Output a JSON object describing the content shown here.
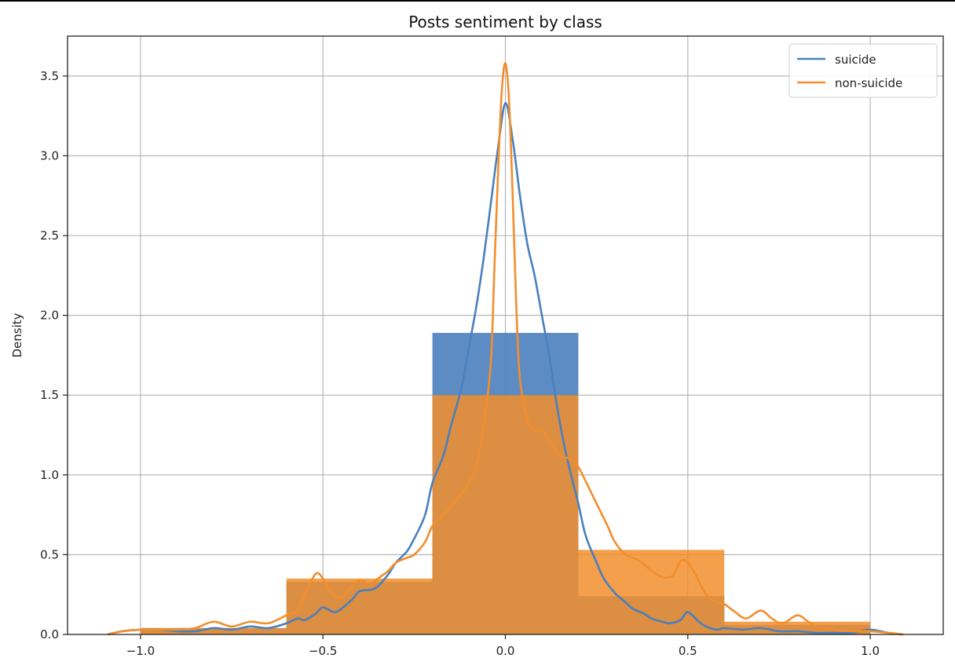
{
  "chart_data": {
    "type": "histogram+kde",
    "title": "Posts sentiment by class",
    "xlabel": "",
    "ylabel": "Density",
    "xlim": [
      -1.2,
      1.2
    ],
    "ylim": [
      0,
      3.75
    ],
    "x_ticks": [
      -1.0,
      -0.5,
      0.0,
      0.5,
      1.0
    ],
    "x_tick_labels": [
      "−1.0",
      "−0.5",
      "0.0",
      "0.5",
      "1.0"
    ],
    "y_ticks": [
      0.0,
      0.5,
      1.0,
      1.5,
      2.0,
      2.5,
      3.0,
      3.5
    ],
    "y_tick_labels": [
      "0.0",
      "0.5",
      "1.0",
      "1.5",
      "2.0",
      "2.5",
      "3.0",
      "3.5"
    ],
    "grid": true,
    "legend_position": "top-right",
    "bin_edges": [
      -1.0,
      -0.6,
      -0.2,
      0.2,
      0.6,
      1.0
    ],
    "series": [
      {
        "name": "suicide",
        "color": "#4a80bd",
        "hist_values": [
          0.04,
          0.33,
          1.89,
          0.24,
          0.06
        ],
        "kde": {
          "x": [
            -1.09,
            -1.05,
            -1.0,
            -0.95,
            -0.9,
            -0.85,
            -0.8,
            -0.75,
            -0.7,
            -0.65,
            -0.6,
            -0.57,
            -0.55,
            -0.52,
            -0.5,
            -0.47,
            -0.45,
            -0.42,
            -0.4,
            -0.37,
            -0.35,
            -0.32,
            -0.3,
            -0.27,
            -0.25,
            -0.22,
            -0.2,
            -0.17,
            -0.15,
            -0.12,
            -0.1,
            -0.08,
            -0.06,
            -0.04,
            -0.02,
            0.0,
            0.02,
            0.04,
            0.06,
            0.08,
            0.1,
            0.12,
            0.14,
            0.16,
            0.18,
            0.2,
            0.22,
            0.25,
            0.27,
            0.3,
            0.33,
            0.35,
            0.38,
            0.4,
            0.43,
            0.45,
            0.48,
            0.5,
            0.53,
            0.55,
            0.58,
            0.6,
            0.65,
            0.7,
            0.75,
            0.8,
            0.85,
            0.9,
            0.95,
            1.0,
            1.05,
            1.09
          ],
          "y": [
            0.0,
            0.02,
            0.03,
            0.03,
            0.02,
            0.02,
            0.04,
            0.03,
            0.05,
            0.04,
            0.07,
            0.1,
            0.09,
            0.13,
            0.17,
            0.14,
            0.16,
            0.22,
            0.27,
            0.28,
            0.3,
            0.38,
            0.45,
            0.52,
            0.6,
            0.75,
            0.95,
            1.12,
            1.3,
            1.55,
            1.8,
            2.05,
            2.35,
            2.7,
            3.05,
            3.33,
            3.1,
            2.75,
            2.45,
            2.25,
            2.0,
            1.75,
            1.45,
            1.2,
            1.0,
            0.82,
            0.62,
            0.45,
            0.35,
            0.26,
            0.2,
            0.16,
            0.13,
            0.1,
            0.08,
            0.07,
            0.09,
            0.14,
            0.08,
            0.05,
            0.03,
            0.04,
            0.03,
            0.04,
            0.02,
            0.02,
            0.01,
            0.01,
            0.01,
            0.03,
            0.01,
            0.0
          ]
        }
      },
      {
        "name": "non-suicide",
        "color": "#f28e2b",
        "hist_values": [
          0.04,
          0.35,
          1.5,
          0.53,
          0.08
        ],
        "kde": {
          "x": [
            -1.09,
            -1.05,
            -1.0,
            -0.95,
            -0.9,
            -0.85,
            -0.8,
            -0.75,
            -0.7,
            -0.65,
            -0.6,
            -0.57,
            -0.55,
            -0.52,
            -0.5,
            -0.48,
            -0.45,
            -0.42,
            -0.4,
            -0.37,
            -0.35,
            -0.32,
            -0.3,
            -0.27,
            -0.25,
            -0.22,
            -0.2,
            -0.17,
            -0.15,
            -0.12,
            -0.1,
            -0.08,
            -0.06,
            -0.04,
            -0.03,
            -0.02,
            -0.01,
            0.0,
            0.01,
            0.02,
            0.03,
            0.04,
            0.06,
            0.08,
            0.1,
            0.12,
            0.15,
            0.18,
            0.2,
            0.22,
            0.25,
            0.28,
            0.3,
            0.33,
            0.36,
            0.38,
            0.4,
            0.43,
            0.46,
            0.48,
            0.5,
            0.52,
            0.55,
            0.58,
            0.6,
            0.63,
            0.66,
            0.7,
            0.73,
            0.76,
            0.8,
            0.83,
            0.86,
            0.9,
            0.95,
            1.0,
            1.05,
            1.09
          ],
          "y": [
            0.0,
            0.02,
            0.03,
            0.03,
            0.03,
            0.04,
            0.08,
            0.05,
            0.08,
            0.07,
            0.12,
            0.15,
            0.25,
            0.38,
            0.35,
            0.27,
            0.23,
            0.3,
            0.34,
            0.32,
            0.35,
            0.4,
            0.45,
            0.48,
            0.5,
            0.58,
            0.68,
            0.75,
            0.8,
            0.88,
            0.95,
            1.05,
            1.3,
            1.7,
            2.3,
            2.9,
            3.4,
            3.58,
            3.35,
            2.75,
            2.05,
            1.6,
            1.35,
            1.28,
            1.28,
            1.22,
            1.12,
            1.1,
            1.05,
            0.96,
            0.82,
            0.68,
            0.58,
            0.5,
            0.47,
            0.44,
            0.4,
            0.36,
            0.37,
            0.46,
            0.45,
            0.38,
            0.25,
            0.2,
            0.19,
            0.14,
            0.1,
            0.15,
            0.1,
            0.07,
            0.12,
            0.08,
            0.04,
            0.03,
            0.02,
            0.02,
            0.01,
            0.0
          ]
        }
      }
    ]
  }
}
